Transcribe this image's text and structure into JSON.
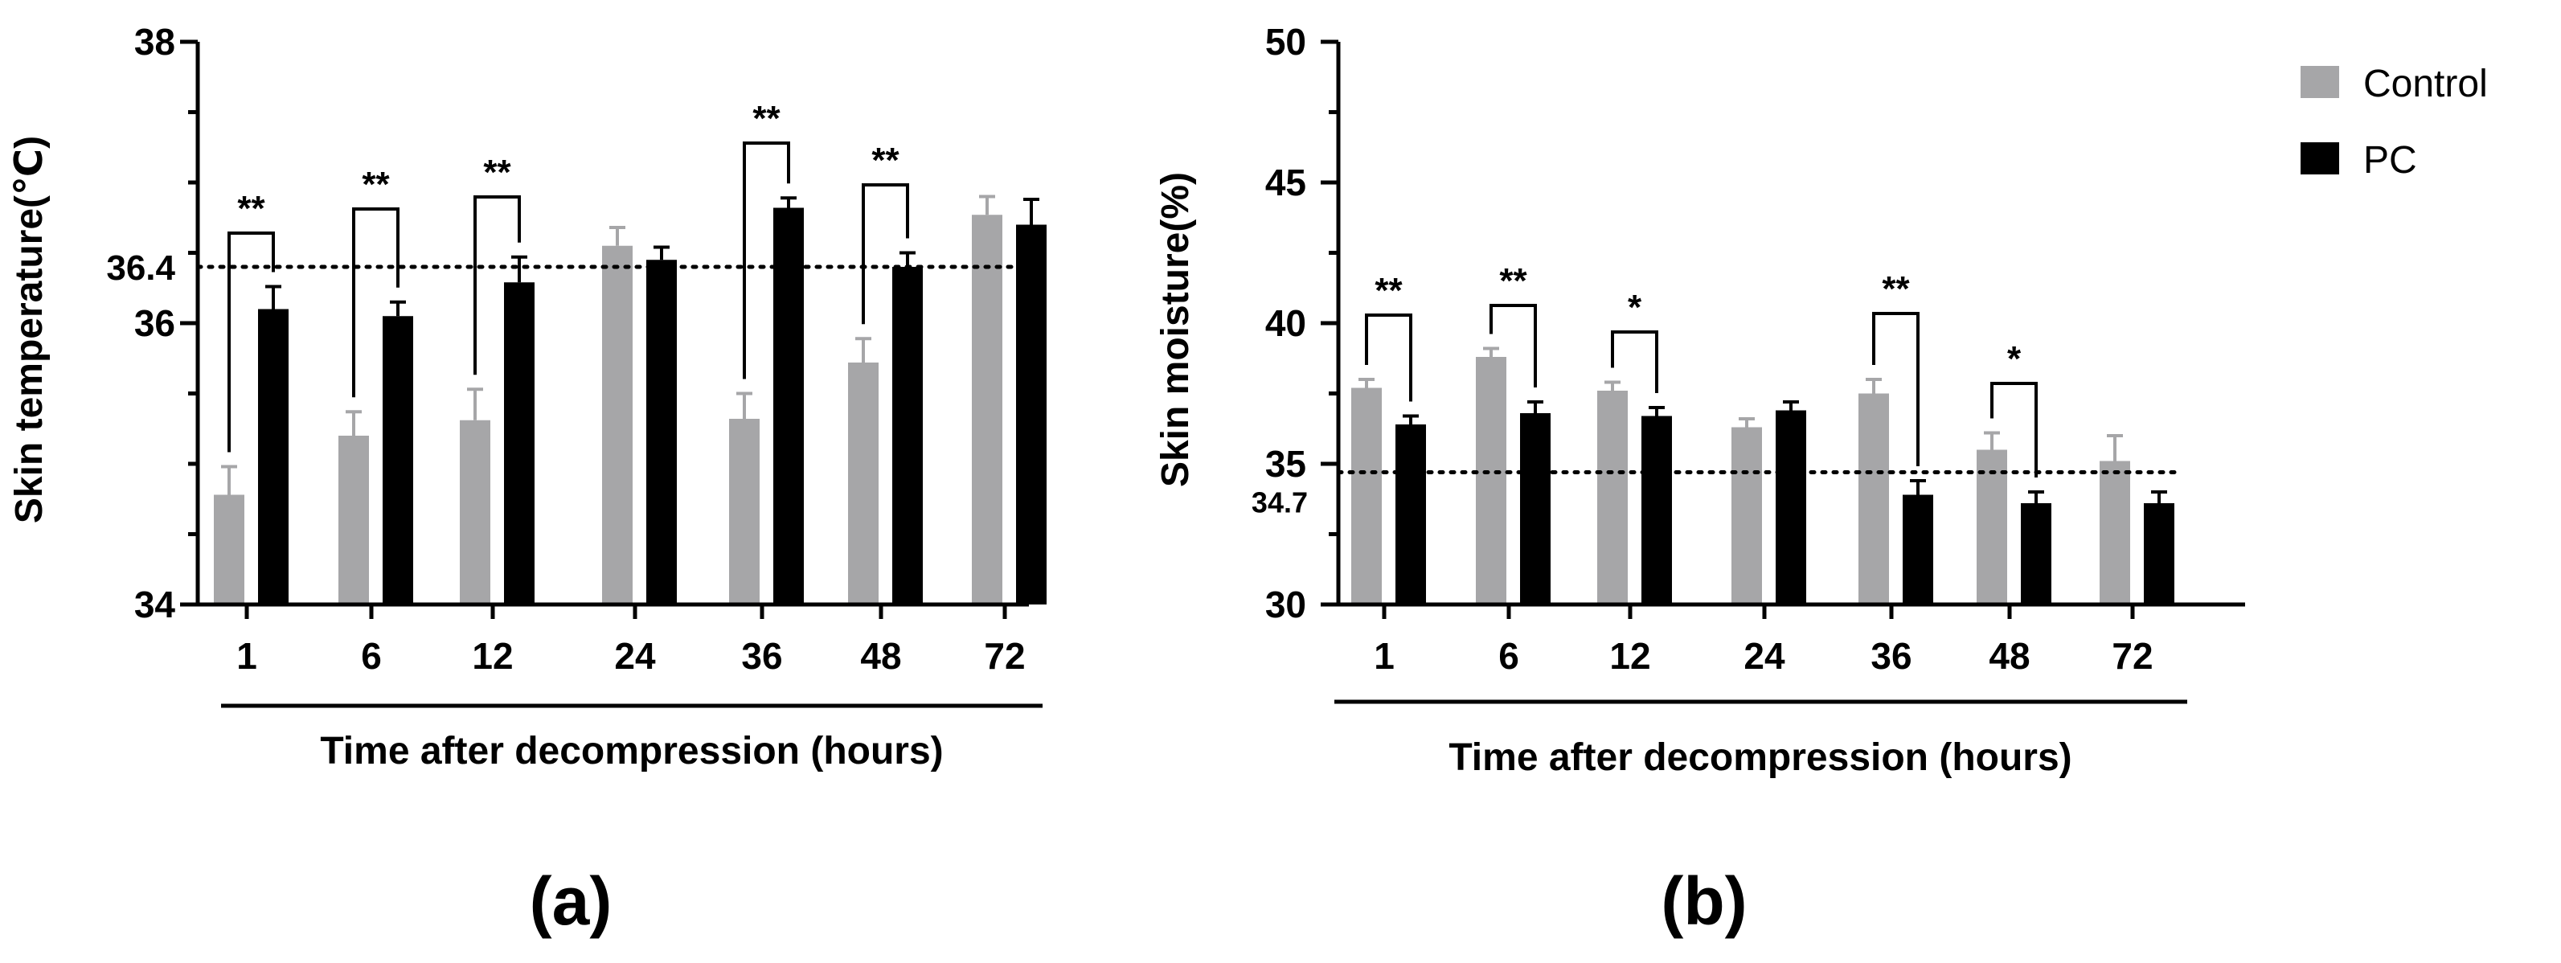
{
  "legend": {
    "items": [
      {
        "name": "Control",
        "color": "#a6a6a8"
      },
      {
        "name": "PC",
        "color": "#000000"
      }
    ]
  },
  "chart_data": [
    {
      "type": "bar",
      "panel_label": "(a)",
      "ylabel": "Skin temperature(℃)",
      "xlabel": "Time after decompression (hours)",
      "categories": [
        "1",
        "6",
        "12",
        "24",
        "36",
        "48",
        "72"
      ],
      "ylim": [
        34,
        38
      ],
      "yticks": [
        34,
        36,
        38
      ],
      "reference_line": {
        "value": 36.4,
        "label": "36.4",
        "style": "dotted"
      },
      "series": [
        {
          "name": "Control",
          "color": "#a6a6a8",
          "values": [
            34.78,
            35.2,
            35.31,
            36.55,
            35.32,
            35.72,
            36.77
          ],
          "errors": [
            0.2,
            0.17,
            0.22,
            0.13,
            0.18,
            0.17,
            0.13
          ]
        },
        {
          "name": "PC",
          "color": "#000000",
          "values": [
            36.1,
            36.05,
            36.29,
            36.45,
            36.82,
            36.4,
            36.7
          ],
          "errors": [
            0.16,
            0.1,
            0.18,
            0.09,
            0.07,
            0.1,
            0.18
          ]
        }
      ],
      "significance": [
        {
          "category": "1",
          "label": "**"
        },
        {
          "category": "6",
          "label": "**"
        },
        {
          "category": "12",
          "label": "**"
        },
        {
          "category": "36",
          "label": "**"
        },
        {
          "category": "48",
          "label": "**"
        }
      ]
    },
    {
      "type": "bar",
      "panel_label": "(b)",
      "ylabel": "Skin moisture(%)",
      "xlabel": "Time after decompression (hours)",
      "categories": [
        "1",
        "6",
        "12",
        "24",
        "36",
        "48",
        "72"
      ],
      "ylim": [
        30,
        50
      ],
      "yticks": [
        30,
        35,
        40,
        45,
        50
      ],
      "reference_line": {
        "value": 34.7,
        "label": "34.7",
        "style": "dotted"
      },
      "series": [
        {
          "name": "Control",
          "color": "#a6a6a8",
          "values": [
            37.7,
            38.8,
            37.6,
            36.3,
            37.5,
            35.5,
            35.1
          ],
          "errors": [
            0.3,
            0.3,
            0.3,
            0.3,
            0.5,
            0.6,
            0.9
          ]
        },
        {
          "name": "PC",
          "color": "#000000",
          "values": [
            36.4,
            36.8,
            36.7,
            36.9,
            33.9,
            33.6,
            33.6
          ],
          "errors": [
            0.3,
            0.4,
            0.3,
            0.3,
            0.5,
            0.4,
            0.4
          ]
        }
      ],
      "significance": [
        {
          "category": "1",
          "label": "**"
        },
        {
          "category": "6",
          "label": "**"
        },
        {
          "category": "12",
          "label": "*"
        },
        {
          "category": "36",
          "label": "**"
        },
        {
          "category": "48",
          "label": "*"
        }
      ]
    }
  ]
}
